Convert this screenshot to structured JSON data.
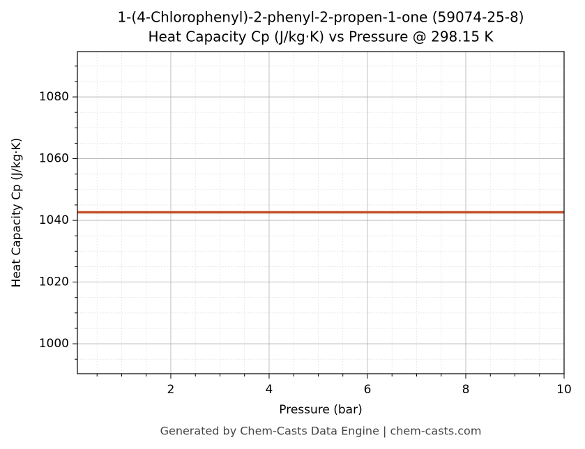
{
  "chart_data": {
    "type": "line",
    "title": "1-(4-Chlorophenyl)-2-phenyl-2-propen-1-one (59074-25-8)",
    "subtitle": "Heat Capacity Cp (J/kg·K) vs Pressure @ 298.15 K",
    "xlabel": "Pressure (bar)",
    "ylabel": "Heat Capacity Cp (J/kg·K)",
    "x": [
      0.1,
      10
    ],
    "series": [
      {
        "name": "Cp",
        "color": "#c4522a",
        "values": [
          1042.6,
          1042.6
        ]
      }
    ],
    "xlim": [
      0.1,
      10
    ],
    "ylim": [
      990.3,
      1094.7
    ],
    "xticks": [
      2,
      4,
      6,
      8,
      10
    ],
    "yticks": [
      1000,
      1020,
      1040,
      1060,
      1080
    ],
    "minor_xticks": [
      0.5,
      1,
      1.5,
      2.5,
      3,
      3.5,
      4.5,
      5,
      5.5,
      6.5,
      7,
      7.5,
      8.5,
      9,
      9.5
    ],
    "minor_yticks": [
      995,
      1005,
      1010,
      1015,
      1025,
      1030,
      1035,
      1045,
      1050,
      1055,
      1065,
      1070,
      1075,
      1085,
      1090
    ],
    "grid": true,
    "footer": "Generated by Chem-Casts Data Engine | chem-casts.com"
  }
}
